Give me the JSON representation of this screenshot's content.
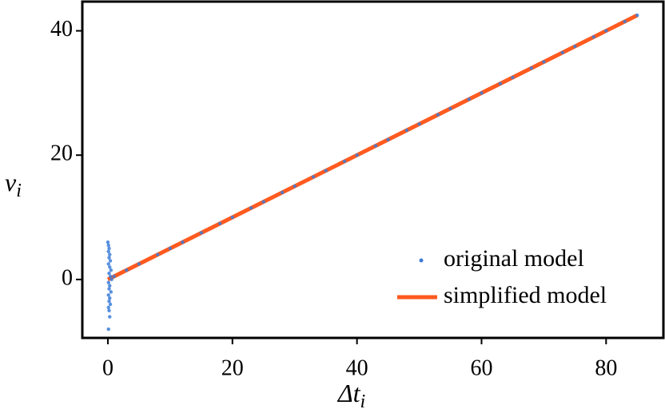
{
  "chart_data": {
    "type": "scatter",
    "xlabel": "Δt",
    "xlabel_subscript": "i",
    "ylabel": "v",
    "ylabel_subscript": "i",
    "xlim": [
      -4.1,
      89.2
    ],
    "ylim": [
      -9.4,
      44.7
    ],
    "xticks": [
      0,
      20,
      40,
      60,
      80
    ],
    "yticks": [
      0,
      20,
      40
    ],
    "legend": "lower right",
    "series": [
      {
        "name": "original model",
        "type": "scatter",
        "color": "#3b7dd8",
        "x": [
          0,
          0.1,
          0.2,
          0.1,
          0.3,
          0.2,
          0.4,
          0.1,
          0.3,
          0.5,
          0.2,
          0.4,
          0.6,
          0.1,
          0.3,
          0.2,
          0.5,
          0.1,
          0.3,
          0.2,
          0.4,
          0.1,
          0.2,
          0.3,
          0.1,
          1,
          3,
          5,
          8,
          10,
          12,
          15,
          18,
          20,
          23,
          25,
          28,
          30,
          33,
          35,
          38,
          40,
          43,
          45,
          48,
          50,
          53,
          55,
          58,
          60,
          63,
          65,
          68,
          70,
          73,
          75,
          78,
          80,
          83,
          85
        ],
        "y": [
          6,
          5.5,
          5,
          4.5,
          4,
          3.5,
          3,
          2.5,
          2,
          1.5,
          1,
          0.5,
          0,
          -0.5,
          -1,
          -1.5,
          -2,
          -2.5,
          -3,
          -3.5,
          -4,
          -4.5,
          -5,
          -6,
          -8,
          0.5,
          1.5,
          2.5,
          4,
          5,
          6,
          7.5,
          9,
          10,
          11.5,
          12.5,
          14,
          15,
          16.5,
          17.5,
          19,
          20,
          21.5,
          22.5,
          24,
          25,
          26.5,
          27.5,
          29,
          30,
          31.5,
          32.5,
          34,
          35,
          36.5,
          37.5,
          39,
          40,
          41.5,
          42.5
        ]
      },
      {
        "name": "simplified model",
        "type": "line",
        "color": "#ff5a1f",
        "x": [
          0,
          85
        ],
        "y": [
          0,
          42.5
        ]
      }
    ]
  }
}
